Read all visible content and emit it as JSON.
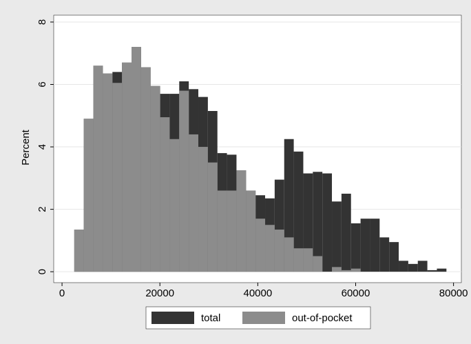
{
  "chart_data": {
    "type": "histogram",
    "ylabel": "Percent",
    "bins": [
      2500,
      4450,
      6400,
      8350,
      10300,
      12250,
      14200,
      16150,
      18100,
      20050,
      22000,
      23950,
      25900,
      27850,
      29800,
      31750,
      33700,
      35650,
      37600,
      39550,
      41500,
      43450,
      45400,
      47350,
      49300,
      51250,
      53200,
      55150,
      57100,
      59050,
      61000,
      62950,
      64900,
      66850,
      68800,
      70750,
      72700,
      74650,
      76600,
      78550
    ],
    "series": [
      {
        "name": "total",
        "color": "#333333",
        "values": [
          1.35,
          4.9,
          6.6,
          6.35,
          6.4,
          6.7,
          7.2,
          6.55,
          5.95,
          5.7,
          5.7,
          6.1,
          5.85,
          5.6,
          5.15,
          3.8,
          3.75,
          3.25,
          2.6,
          2.45,
          2.35,
          2.95,
          4.25,
          3.85,
          3.15,
          3.2,
          3.15,
          2.25,
          2.5,
          1.55,
          1.7,
          1.7,
          1.1,
          0.95,
          0.35,
          0.25,
          0.35,
          0.05,
          0.1
        ]
      },
      {
        "name": "out-of-pocket",
        "color": "#8c8c8c",
        "values": [
          1.35,
          4.9,
          6.6,
          6.35,
          6.05,
          6.7,
          7.2,
          6.55,
          5.95,
          4.95,
          4.25,
          5.8,
          4.4,
          4.0,
          3.5,
          2.6,
          2.6,
          3.25,
          2.6,
          1.7,
          1.5,
          1.35,
          1.1,
          0.75,
          0.75,
          0.5,
          0,
          0.15,
          0.05,
          0.1,
          0,
          0,
          0,
          0,
          0,
          0,
          0,
          0,
          0
        ]
      }
    ],
    "xlim": [
      -1700,
      81600
    ],
    "xticks": [
      0,
      20000,
      40000,
      60000,
      80000
    ],
    "ylim": [
      -0.35,
      8.22
    ],
    "yticks": [
      0,
      2,
      4,
      6,
      8
    ],
    "grid": true
  }
}
